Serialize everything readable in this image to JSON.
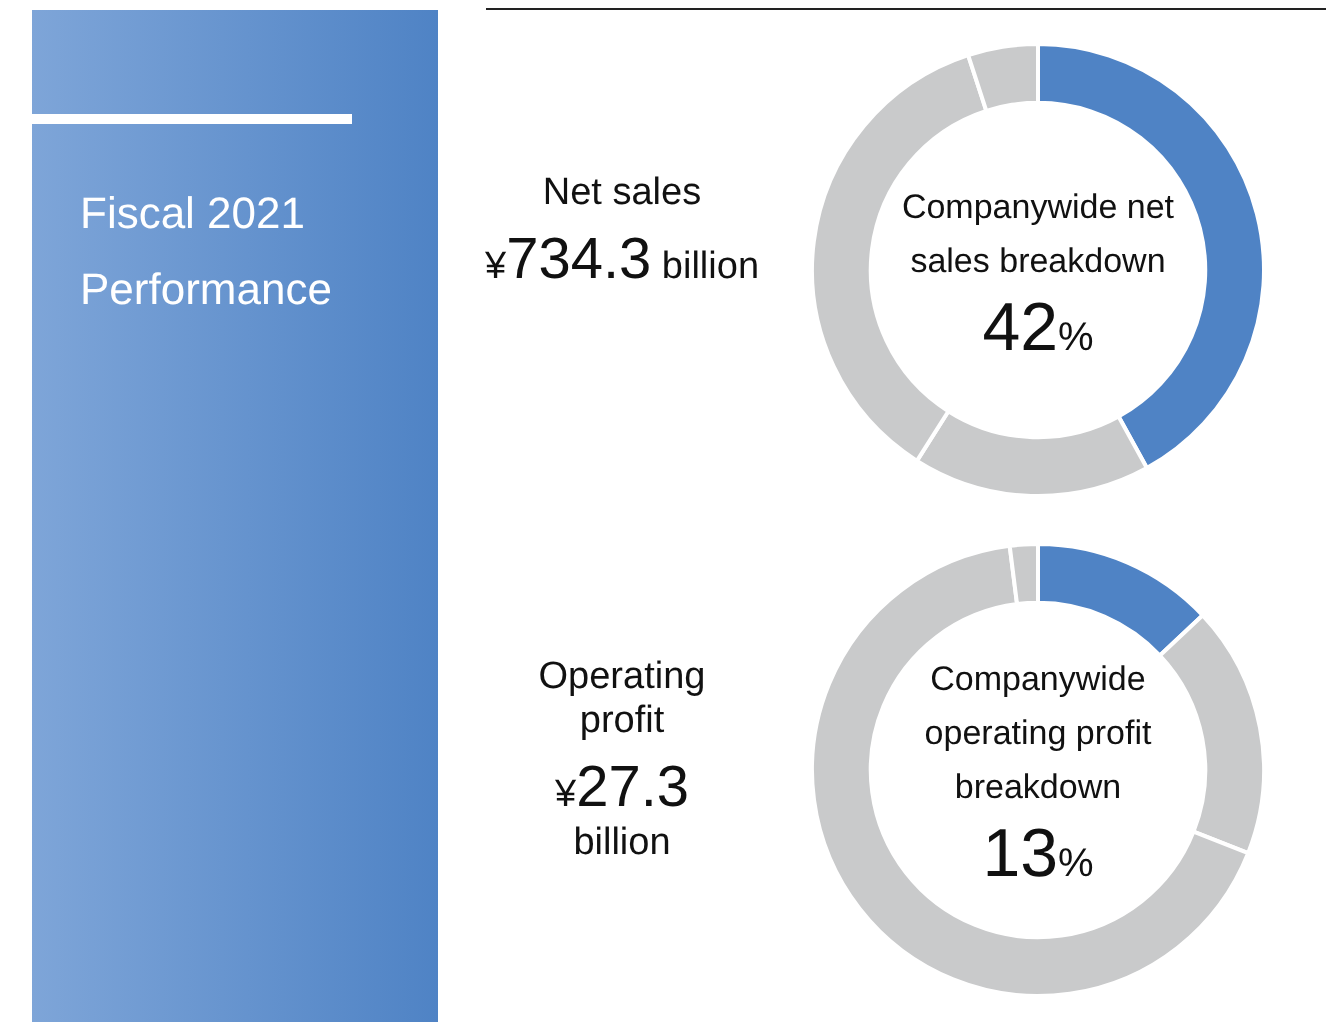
{
  "chart_data": [
    {
      "type": "other",
      "title": "Fiscal 2021 Performance"
    },
    {
      "type": "donut",
      "title": "Companywide net sales breakdown",
      "annotations": [
        "Net sales",
        "¥734.3 billion",
        "42%"
      ],
      "categories": [
        null,
        null,
        null,
        null
      ],
      "values": [
        42,
        17,
        36,
        5
      ],
      "colors": [
        "#4f83c5",
        "#c9cacb",
        "#c9cacb",
        "#c9cacb"
      ],
      "legend": false
    },
    {
      "type": "donut",
      "title": "Companywide operating profit breakdown",
      "annotations": [
        "Operating profit",
        "¥27.3 billion",
        "13%"
      ],
      "categories": [
        null,
        null,
        null,
        null
      ],
      "values": [
        13,
        18,
        67,
        2
      ],
      "colors": [
        "#4f83c5",
        "#c9cacb",
        "#c9cacb",
        "#c9cacb"
      ],
      "legend": false
    }
  ]
}
